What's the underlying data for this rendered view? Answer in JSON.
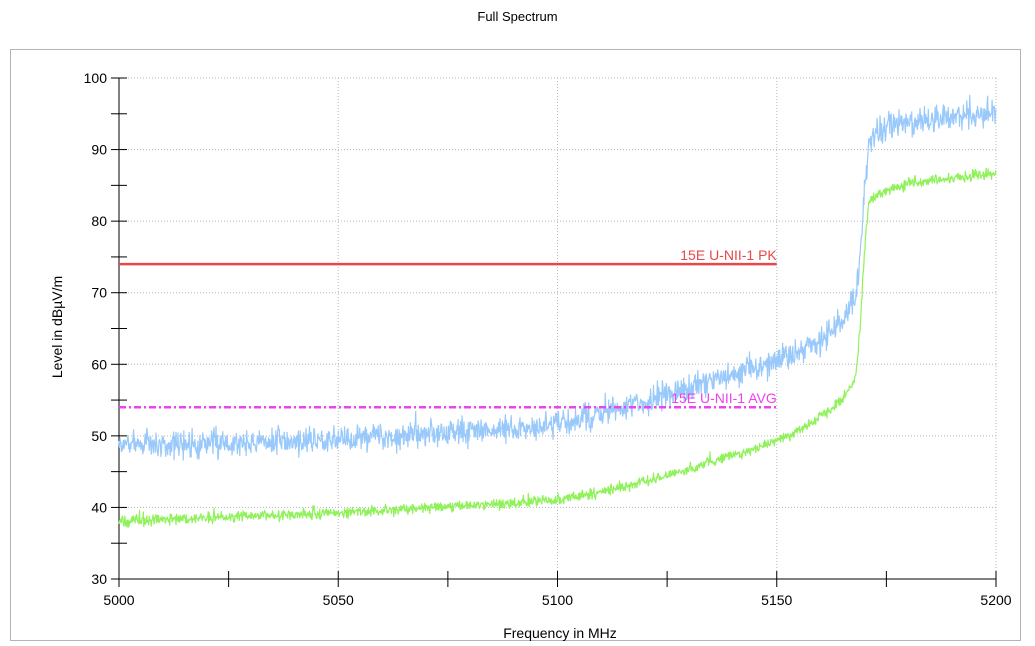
{
  "chart_data": {
    "type": "line",
    "title": "Full Spectrum",
    "xlabel": "Frequency in MHz",
    "ylabel": "Level in dBµV/m",
    "xlim": [
      5000,
      5200
    ],
    "ylim": [
      30,
      100
    ],
    "x_ticks": [
      5000,
      5050,
      5100,
      5150,
      5200
    ],
    "y_ticks": [
      30,
      40,
      50,
      60,
      70,
      80,
      90,
      100
    ],
    "x_minor_step": 25,
    "y_minor_step": 5,
    "grid": true,
    "series": [
      {
        "color": "#99c9fb",
        "noise": 0.9,
        "x": [
          5000,
          5010,
          5020,
          5030,
          5040,
          5050,
          5060,
          5070,
          5080,
          5090,
          5100,
          5105,
          5110,
          5115,
          5120,
          5125,
          5130,
          5135,
          5140,
          5145,
          5150,
          5155,
          5160,
          5165,
          5168,
          5169,
          5170,
          5171,
          5172,
          5175,
          5180,
          5185,
          5190,
          5195,
          5200
        ],
        "y": [
          48.8,
          48.8,
          48.9,
          49.0,
          49.3,
          49.6,
          49.9,
          50.3,
          50.6,
          51.0,
          51.6,
          52.2,
          53.0,
          53.8,
          54.8,
          55.7,
          56.5,
          57.5,
          58.5,
          59.6,
          60.5,
          61.7,
          63.2,
          66.0,
          69.5,
          75.0,
          84.0,
          90.5,
          91.8,
          92.8,
          93.8,
          94.2,
          94.6,
          94.9,
          95.0
        ]
      },
      {
        "color": "#8ff25a",
        "noise": 0.35,
        "x": [
          5000,
          5010,
          5020,
          5030,
          5040,
          5050,
          5060,
          5070,
          5080,
          5090,
          5100,
          5105,
          5110,
          5115,
          5120,
          5125,
          5130,
          5135,
          5140,
          5145,
          5150,
          5155,
          5160,
          5165,
          5168,
          5169,
          5170,
          5171,
          5172,
          5175,
          5180,
          5185,
          5190,
          5195,
          5200
        ],
        "y": [
          38.0,
          38.3,
          38.6,
          38.8,
          39.0,
          39.2,
          39.6,
          40.0,
          40.3,
          40.6,
          41.1,
          41.6,
          42.2,
          42.9,
          43.6,
          44.5,
          45.4,
          46.4,
          47.3,
          48.1,
          49.3,
          50.8,
          52.7,
          55.0,
          58.0,
          65.0,
          76.0,
          82.5,
          83.3,
          84.3,
          85.2,
          85.6,
          86.0,
          86.4,
          86.6
        ]
      }
    ],
    "limit_lines": [
      {
        "label": "15E U-NII-1 PK",
        "x": [
          5000,
          5150
        ],
        "y": 74,
        "color": "#e8474a",
        "dash": false
      },
      {
        "label": "15E U-NII-1 AVG",
        "x": [
          5000,
          5150
        ],
        "y": 54,
        "color": "#ee42ee",
        "dash": true
      }
    ]
  }
}
